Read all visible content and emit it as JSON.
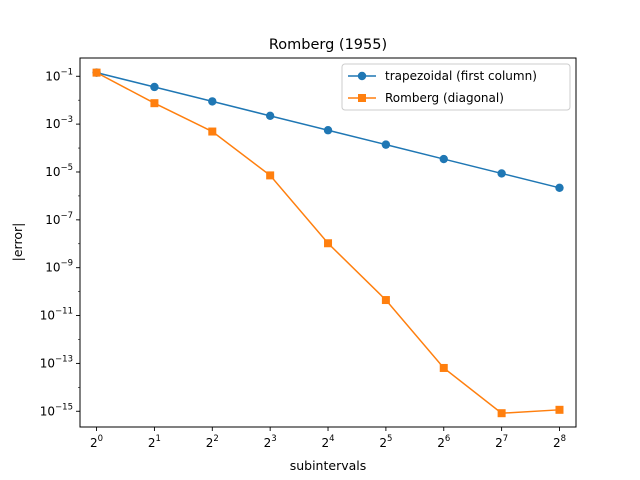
{
  "chart_data": {
    "type": "line",
    "title": "Romberg (1955)",
    "xlabel": "subintervals",
    "ylabel": "|error|",
    "x_scale": "log2",
    "y_scale": "log10",
    "x": [
      1,
      2,
      4,
      8,
      16,
      32,
      64,
      128,
      256
    ],
    "x_tick_labels": [
      {
        "base": "2",
        "exp": "0"
      },
      {
        "base": "2",
        "exp": "1"
      },
      {
        "base": "2",
        "exp": "2"
      },
      {
        "base": "2",
        "exp": "3"
      },
      {
        "base": "2",
        "exp": "4"
      },
      {
        "base": "2",
        "exp": "5"
      },
      {
        "base": "2",
        "exp": "6"
      },
      {
        "base": "2",
        "exp": "7"
      },
      {
        "base": "2",
        "exp": "8"
      }
    ],
    "y_tick_values": [
      0.1,
      0.001,
      1e-05,
      1e-07,
      1e-09,
      1e-11,
      1e-13,
      1e-15
    ],
    "y_tick_labels": [
      {
        "base": "10",
        "exp": "−1"
      },
      {
        "base": "10",
        "exp": "−3"
      },
      {
        "base": "10",
        "exp": "−5"
      },
      {
        "base": "10",
        "exp": "−7"
      },
      {
        "base": "10",
        "exp": "−9"
      },
      {
        "base": "10",
        "exp": "−11"
      },
      {
        "base": "10",
        "exp": "−13"
      },
      {
        "base": "10",
        "exp": "−15"
      }
    ],
    "xlim": [
      0.82,
      312
    ],
    "ylim": [
      2.2e-16,
      0.58
    ],
    "grid": false,
    "legend_position": "top-right",
    "series": [
      {
        "name": "trapezoidal (first column)",
        "color": "#1f77b4",
        "marker": "circle",
        "values": [
          0.142,
          0.0357,
          0.0089,
          0.00222,
          0.000556,
          0.000139,
          3.47e-05,
          8.7e-06,
          2.18e-06
        ]
      },
      {
        "name": "Romberg (diagonal)",
        "color": "#ff7f0e",
        "marker": "square",
        "values": [
          0.142,
          0.0075,
          0.00049,
          7.2e-06,
          1.05e-08,
          4.45e-11,
          6.45e-14,
          8.3e-16,
          1.15e-15
        ]
      }
    ]
  }
}
